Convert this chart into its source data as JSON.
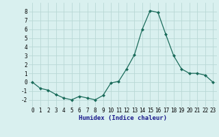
{
  "x": [
    0,
    1,
    2,
    3,
    4,
    5,
    6,
    7,
    8,
    9,
    10,
    11,
    12,
    13,
    14,
    15,
    16,
    17,
    18,
    19,
    20,
    21,
    22,
    23
  ],
  "y": [
    0.0,
    -0.7,
    -0.9,
    -1.4,
    -1.8,
    -2.0,
    -1.6,
    -1.8,
    -2.0,
    -1.5,
    -0.1,
    0.1,
    1.5,
    3.1,
    6.0,
    8.1,
    7.9,
    5.4,
    3.0,
    1.5,
    1.0,
    1.0,
    0.8,
    0.0
  ],
  "xlabel": "Humidex (Indice chaleur)",
  "ylim": [
    -2.8,
    9.0
  ],
  "xlim": [
    -0.5,
    23.5
  ],
  "line_color": "#1a6b5a",
  "marker": "D",
  "marker_size": 2.0,
  "bg_color": "#d9f0ef",
  "grid_color": "#b8d8d5",
  "yticks": [
    -2,
    -1,
    0,
    1,
    2,
    3,
    4,
    5,
    6,
    7,
    8
  ],
  "xticks": [
    0,
    1,
    2,
    3,
    4,
    5,
    6,
    7,
    8,
    9,
    10,
    11,
    12,
    13,
    14,
    15,
    16,
    17,
    18,
    19,
    20,
    21,
    22,
    23
  ],
  "tick_fontsize": 5.5,
  "xlabel_fontsize": 6.5,
  "xlabel_color": "#1a1a8c"
}
